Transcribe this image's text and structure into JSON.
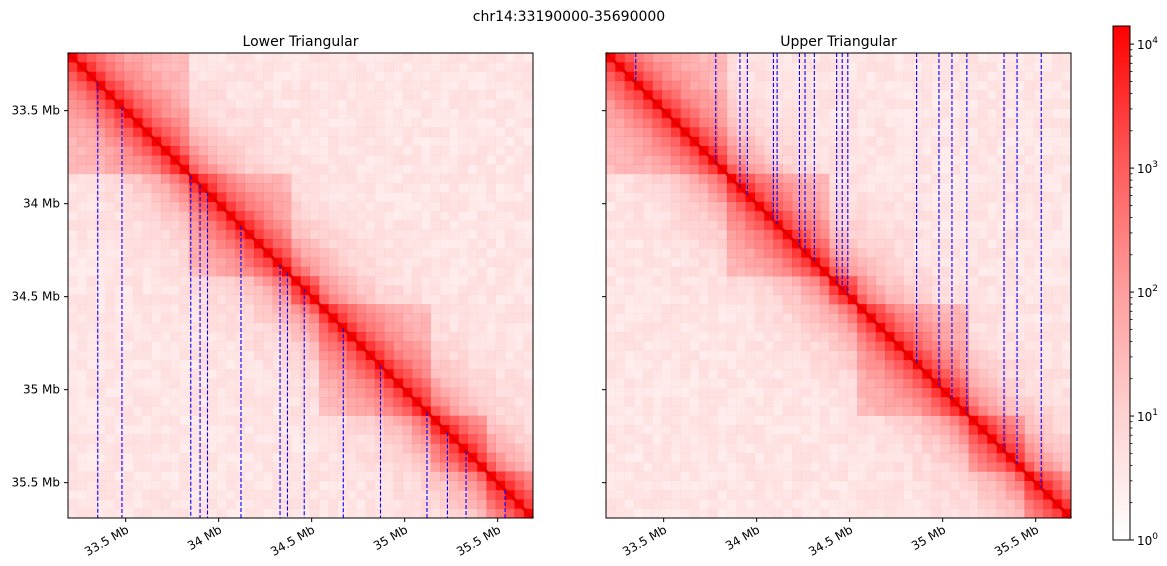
{
  "suptitle": "chr14:33190000-35690000",
  "colors": {
    "cmap_low": "#ffffff",
    "cmap_high": "#ff0000",
    "lines": "#0000ff",
    "frame": "#000000"
  },
  "chart_data": [
    {
      "type": "heatmap",
      "title": "Lower Triangular",
      "region": "chr14:33190000-35690000",
      "xlim": [
        33.19,
        35.69
      ],
      "ylim": [
        35.69,
        33.19
      ],
      "axis_unit": "Mb",
      "xticks": [
        33.5,
        34,
        34.5,
        35,
        35.5
      ],
      "xticklabels": [
        "33.5 Mb",
        "34 Mb",
        "34.5 Mb",
        "35 Mb",
        "35.5 Mb"
      ],
      "yticks": [
        33.5,
        34,
        34.5,
        35,
        35.5
      ],
      "yticklabels": [
        "33.5 Mb",
        "34 Mb",
        "34.5 Mb",
        "35 Mb",
        "35.5 Mb"
      ],
      "show_yticklabels": true,
      "triangle": "lower",
      "boundary_lines_mb": [
        33.35,
        33.48,
        33.85,
        33.9,
        33.94,
        34.12,
        34.33,
        34.37,
        34.46,
        34.67,
        34.87,
        35.12,
        35.23,
        35.33,
        35.54
      ],
      "domains_mb": [
        [
          33.19,
          33.83
        ],
        [
          33.83,
          34.37
        ],
        [
          34.37,
          34.55
        ],
        [
          34.55,
          35.12
        ],
        [
          35.12,
          35.45
        ],
        [
          35.45,
          35.69
        ]
      ]
    },
    {
      "type": "heatmap",
      "title": "Upper Triangular",
      "region": "chr14:33190000-35690000",
      "xlim": [
        33.19,
        35.69
      ],
      "ylim": [
        35.69,
        33.19
      ],
      "axis_unit": "Mb",
      "xticks": [
        33.5,
        34,
        34.5,
        35,
        35.5
      ],
      "xticklabels": [
        "33.5 Mb",
        "34 Mb",
        "34.5 Mb",
        "35 Mb",
        "35.5 Mb"
      ],
      "yticks": [
        33.5,
        34,
        34.5,
        35,
        35.5
      ],
      "yticklabels": [
        "",
        "",
        "",
        "",
        ""
      ],
      "show_yticklabels": false,
      "triangle": "upper",
      "boundary_lines_mb": [
        33.35,
        33.78,
        33.91,
        33.95,
        34.09,
        34.11,
        34.23,
        34.26,
        34.31,
        34.43,
        34.46,
        34.49,
        34.86,
        34.98,
        35.05,
        35.13,
        35.33,
        35.4,
        35.53
      ],
      "domains_mb": [
        [
          33.19,
          33.83
        ],
        [
          33.83,
          34.37
        ],
        [
          34.37,
          34.55
        ],
        [
          34.55,
          35.12
        ],
        [
          35.12,
          35.45
        ],
        [
          35.45,
          35.69
        ]
      ]
    }
  ],
  "colorbar": {
    "scale": "log",
    "vmin": 1,
    "vmax": 14000,
    "ticks": [
      1,
      10,
      100,
      1000,
      10000
    ],
    "ticklabels": [
      "10",
      "10",
      "10",
      "10",
      "10"
    ],
    "tickexponents": [
      "0",
      "1",
      "2",
      "3",
      "4"
    ]
  }
}
